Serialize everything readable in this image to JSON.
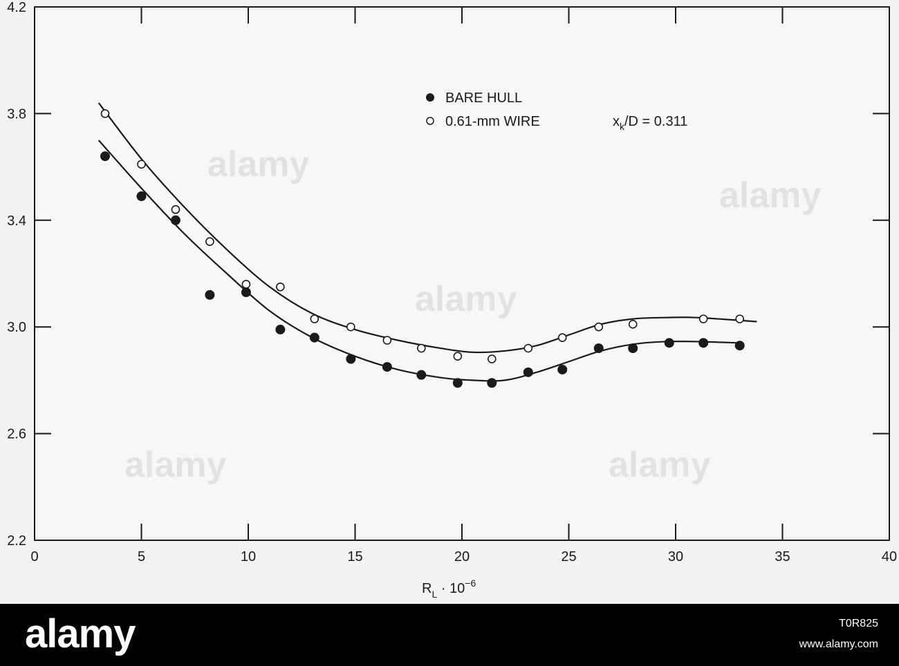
{
  "chart_data": {
    "type": "scatter",
    "title": "",
    "xlabel_main": "R",
    "xlabel_sub": "L",
    "xlabel_suffix": " · 10",
    "xlabel_exp": "−6",
    "ylabel": "",
    "xlim": [
      0,
      40
    ],
    "ylim": [
      2.2,
      4.2
    ],
    "x_ticks": [
      "0",
      "5",
      "10",
      "15",
      "20",
      "25",
      "30",
      "35",
      "40"
    ],
    "y_ticks": [
      "2.2",
      "2.6",
      "3.0",
      "3.4",
      "3.8",
      "4.2"
    ],
    "grid": false,
    "legend_position": "top-center",
    "series": [
      {
        "name": "BARE HULL",
        "marker": "filled-circle",
        "x": [
          3.3,
          5.0,
          6.6,
          8.2,
          9.9,
          11.5,
          13.1,
          14.8,
          16.5,
          18.1,
          19.8,
          21.4,
          23.1,
          24.7,
          26.4,
          28.0,
          29.7,
          31.3,
          33.0
        ],
        "y": [
          3.64,
          3.49,
          3.4,
          3.12,
          3.13,
          2.99,
          2.96,
          2.88,
          2.85,
          2.82,
          2.79,
          2.79,
          2.83,
          2.84,
          2.92,
          2.92,
          2.94,
          2.94,
          2.93
        ]
      },
      {
        "name": "0.61-mm WIRE",
        "marker": "open-circle",
        "x": [
          3.3,
          5.0,
          6.6,
          8.2,
          9.9,
          11.5,
          13.1,
          14.8,
          16.5,
          18.1,
          19.8,
          21.4,
          23.1,
          24.7,
          26.4,
          28.0,
          31.3,
          33.0
        ],
        "y": [
          3.8,
          3.61,
          3.44,
          3.32,
          3.16,
          3.15,
          3.03,
          3.0,
          2.95,
          2.92,
          2.89,
          2.88,
          2.92,
          2.96,
          3.0,
          3.01,
          3.03,
          3.03
        ]
      }
    ],
    "fit_curves": [
      {
        "for": "BARE HULL",
        "x": [
          3.0,
          5.0,
          7.0,
          9.0,
          11.0,
          13.0,
          15.0,
          17.0,
          19.0,
          20.5,
          22.0,
          23.5,
          25.0,
          26.5,
          28.0,
          29.5,
          31.0,
          33.0
        ],
        "y": [
          3.7,
          3.52,
          3.35,
          3.2,
          3.06,
          2.96,
          2.89,
          2.84,
          2.81,
          2.8,
          2.8,
          2.83,
          2.87,
          2.91,
          2.935,
          2.945,
          2.945,
          2.94
        ]
      },
      {
        "for": "0.61-mm WIRE",
        "x": [
          3.0,
          5.0,
          7.0,
          9.0,
          11.0,
          13.0,
          15.0,
          17.0,
          19.0,
          20.5,
          22.0,
          23.5,
          25.0,
          26.5,
          28.0,
          29.5,
          31.0,
          33.8
        ],
        "y": [
          3.84,
          3.63,
          3.45,
          3.29,
          3.15,
          3.05,
          2.99,
          2.95,
          2.92,
          2.905,
          2.91,
          2.93,
          2.97,
          3.01,
          3.03,
          3.035,
          3.035,
          3.02
        ]
      }
    ],
    "annotation": {
      "text_main": "x",
      "text_sub": "k",
      "text_rest": "/D = 0.311"
    }
  },
  "watermark": {
    "brand": "alamy",
    "image_id": "T0R825",
    "url": "www.alamy.com"
  }
}
